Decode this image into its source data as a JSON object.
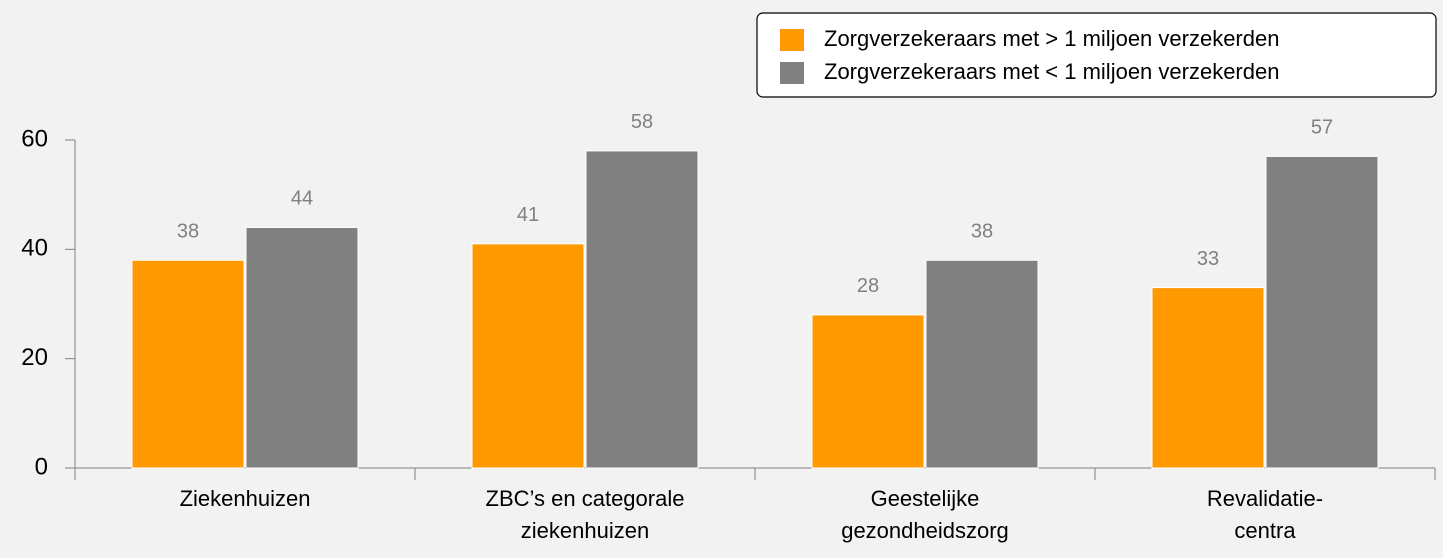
{
  "chart_data": {
    "type": "bar",
    "categories": [
      [
        "Ziekenhuizen"
      ],
      [
        "ZBC’s en categorale",
        "ziekenhuizen"
      ],
      [
        "Geestelijke",
        "gezondheidszorg"
      ],
      [
        "Revalidatie-",
        "centra"
      ]
    ],
    "series": [
      {
        "name": "Zorgverzekeraars met > 1 miljoen verzekerden",
        "color": "#ff9900",
        "values": [
          38,
          41,
          28,
          33
        ]
      },
      {
        "name": "Zorgverzekeraars met < 1 miljoen verzekerden",
        "color": "#808080",
        "values": [
          44,
          58,
          38,
          57
        ]
      }
    ],
    "ylim": [
      0,
      60
    ],
    "yticks": [
      0,
      20,
      40,
      60
    ],
    "legend": "top-right"
  }
}
